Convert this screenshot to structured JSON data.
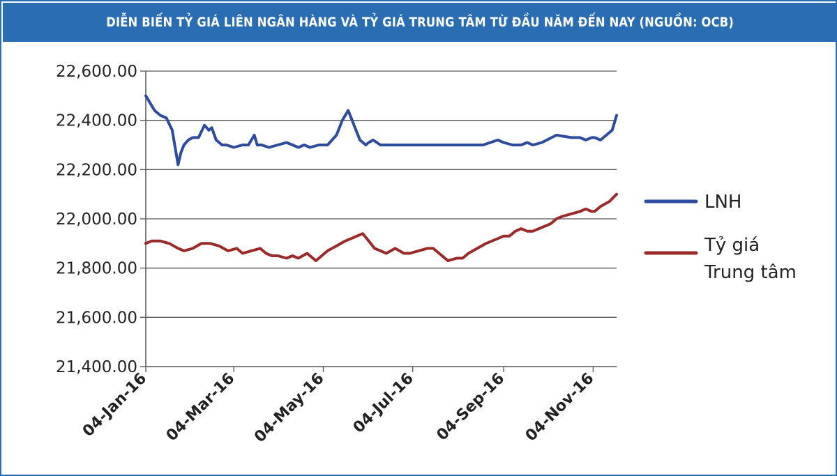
{
  "colors": {
    "header_bg": "#2a6db3",
    "lnh": "#2e4b9e",
    "central": "#9b2a2a"
  },
  "chart_data": {
    "type": "line",
    "title": "DIỄN BIẾN TỶ GIÁ LIÊN NGÂN HÀNG VÀ TỶ GIÁ TRUNG TÂM TỪ ĐẦU NĂM ĐẾN NAY (NGUỒN: OCB)",
    "xlabel": "",
    "ylabel": "",
    "ylim": [
      21400,
      22600
    ],
    "yticks": [
      22600,
      22400,
      22200,
      22000,
      21800,
      21600,
      21400
    ],
    "ytick_labels": [
      "22,600.00",
      "22,400.00",
      "22,200.00",
      "22,000.00",
      "21,800.00",
      "21,600.00",
      "21,400.00"
    ],
    "xlim": [
      0,
      321
    ],
    "xticks": [
      0,
      60,
      121,
      182,
      244,
      305
    ],
    "xtick_labels": [
      "04-Jan-16",
      "04-Mar-16",
      "04-May-16",
      "04-Jul-16",
      "04-Sep-16",
      "04-Nov-16"
    ],
    "legend_position": "right",
    "series": [
      {
        "name": "LNH",
        "legend_label": "LNH",
        "color": "#2e4b9e",
        "x": [
          0,
          3,
          6,
          10,
          14,
          18,
          22,
          24,
          26,
          29,
          32,
          36,
          40,
          43,
          45,
          48,
          52,
          55,
          60,
          66,
          70,
          74,
          76,
          79,
          84,
          90,
          96,
          100,
          104,
          108,
          112,
          118,
          124,
          130,
          134,
          138,
          142,
          146,
          150,
          152,
          155,
          160,
          166,
          172,
          176,
          180,
          186,
          192,
          198,
          210,
          220,
          230,
          240,
          244,
          250,
          256,
          260,
          264,
          270,
          280,
          290,
          296,
          300,
          304,
          306,
          310,
          314,
          318,
          320,
          321
        ],
        "values": [
          22500,
          22470,
          22440,
          22420,
          22410,
          22360,
          22220,
          22270,
          22300,
          22320,
          22330,
          22330,
          22380,
          22360,
          22370,
          22320,
          22300,
          22300,
          22290,
          22300,
          22300,
          22340,
          22300,
          22300,
          22290,
          22300,
          22310,
          22300,
          22290,
          22300,
          22290,
          22300,
          22300,
          22340,
          22400,
          22440,
          22380,
          22320,
          22300,
          22310,
          22320,
          22300,
          22300,
          22300,
          22300,
          22300,
          22300,
          22300,
          22300,
          22300,
          22300,
          22300,
          22320,
          22310,
          22300,
          22300,
          22310,
          22300,
          22310,
          22340,
          22330,
          22330,
          22320,
          22330,
          22330,
          22320,
          22340,
          22360,
          22400,
          22420
        ]
      },
      {
        "name": "Tỷ giá Trung tâm",
        "legend_label_line1": "Tỷ giá",
        "legend_label_line2": "Trung tâm",
        "color": "#9b2a2a",
        "x": [
          0,
          4,
          10,
          16,
          22,
          26,
          32,
          38,
          44,
          50,
          56,
          62,
          66,
          72,
          78,
          82,
          86,
          90,
          96,
          100,
          104,
          110,
          116,
          120,
          124,
          130,
          136,
          140,
          144,
          148,
          152,
          156,
          160,
          164,
          170,
          176,
          180,
          186,
          192,
          196,
          200,
          206,
          212,
          216,
          220,
          226,
          232,
          240,
          244,
          248,
          252,
          256,
          260,
          264,
          268,
          272,
          276,
          280,
          284,
          290,
          296,
          300,
          304,
          306,
          310,
          316,
          321
        ],
        "values": [
          21900,
          21910,
          21910,
          21900,
          21880,
          21870,
          21880,
          21900,
          21900,
          21890,
          21870,
          21880,
          21860,
          21870,
          21880,
          21860,
          21850,
          21850,
          21840,
          21850,
          21840,
          21860,
          21830,
          21850,
          21870,
          21890,
          21910,
          21920,
          21930,
          21940,
          21910,
          21880,
          21870,
          21860,
          21880,
          21860,
          21860,
          21870,
          21880,
          21880,
          21860,
          21830,
          21840,
          21840,
          21860,
          21880,
          21900,
          21920,
          21930,
          21930,
          21950,
          21960,
          21950,
          21950,
          21960,
          21970,
          21980,
          22000,
          22010,
          22020,
          22030,
          22040,
          22030,
          22030,
          22050,
          22070,
          22100
        ]
      }
    ]
  }
}
